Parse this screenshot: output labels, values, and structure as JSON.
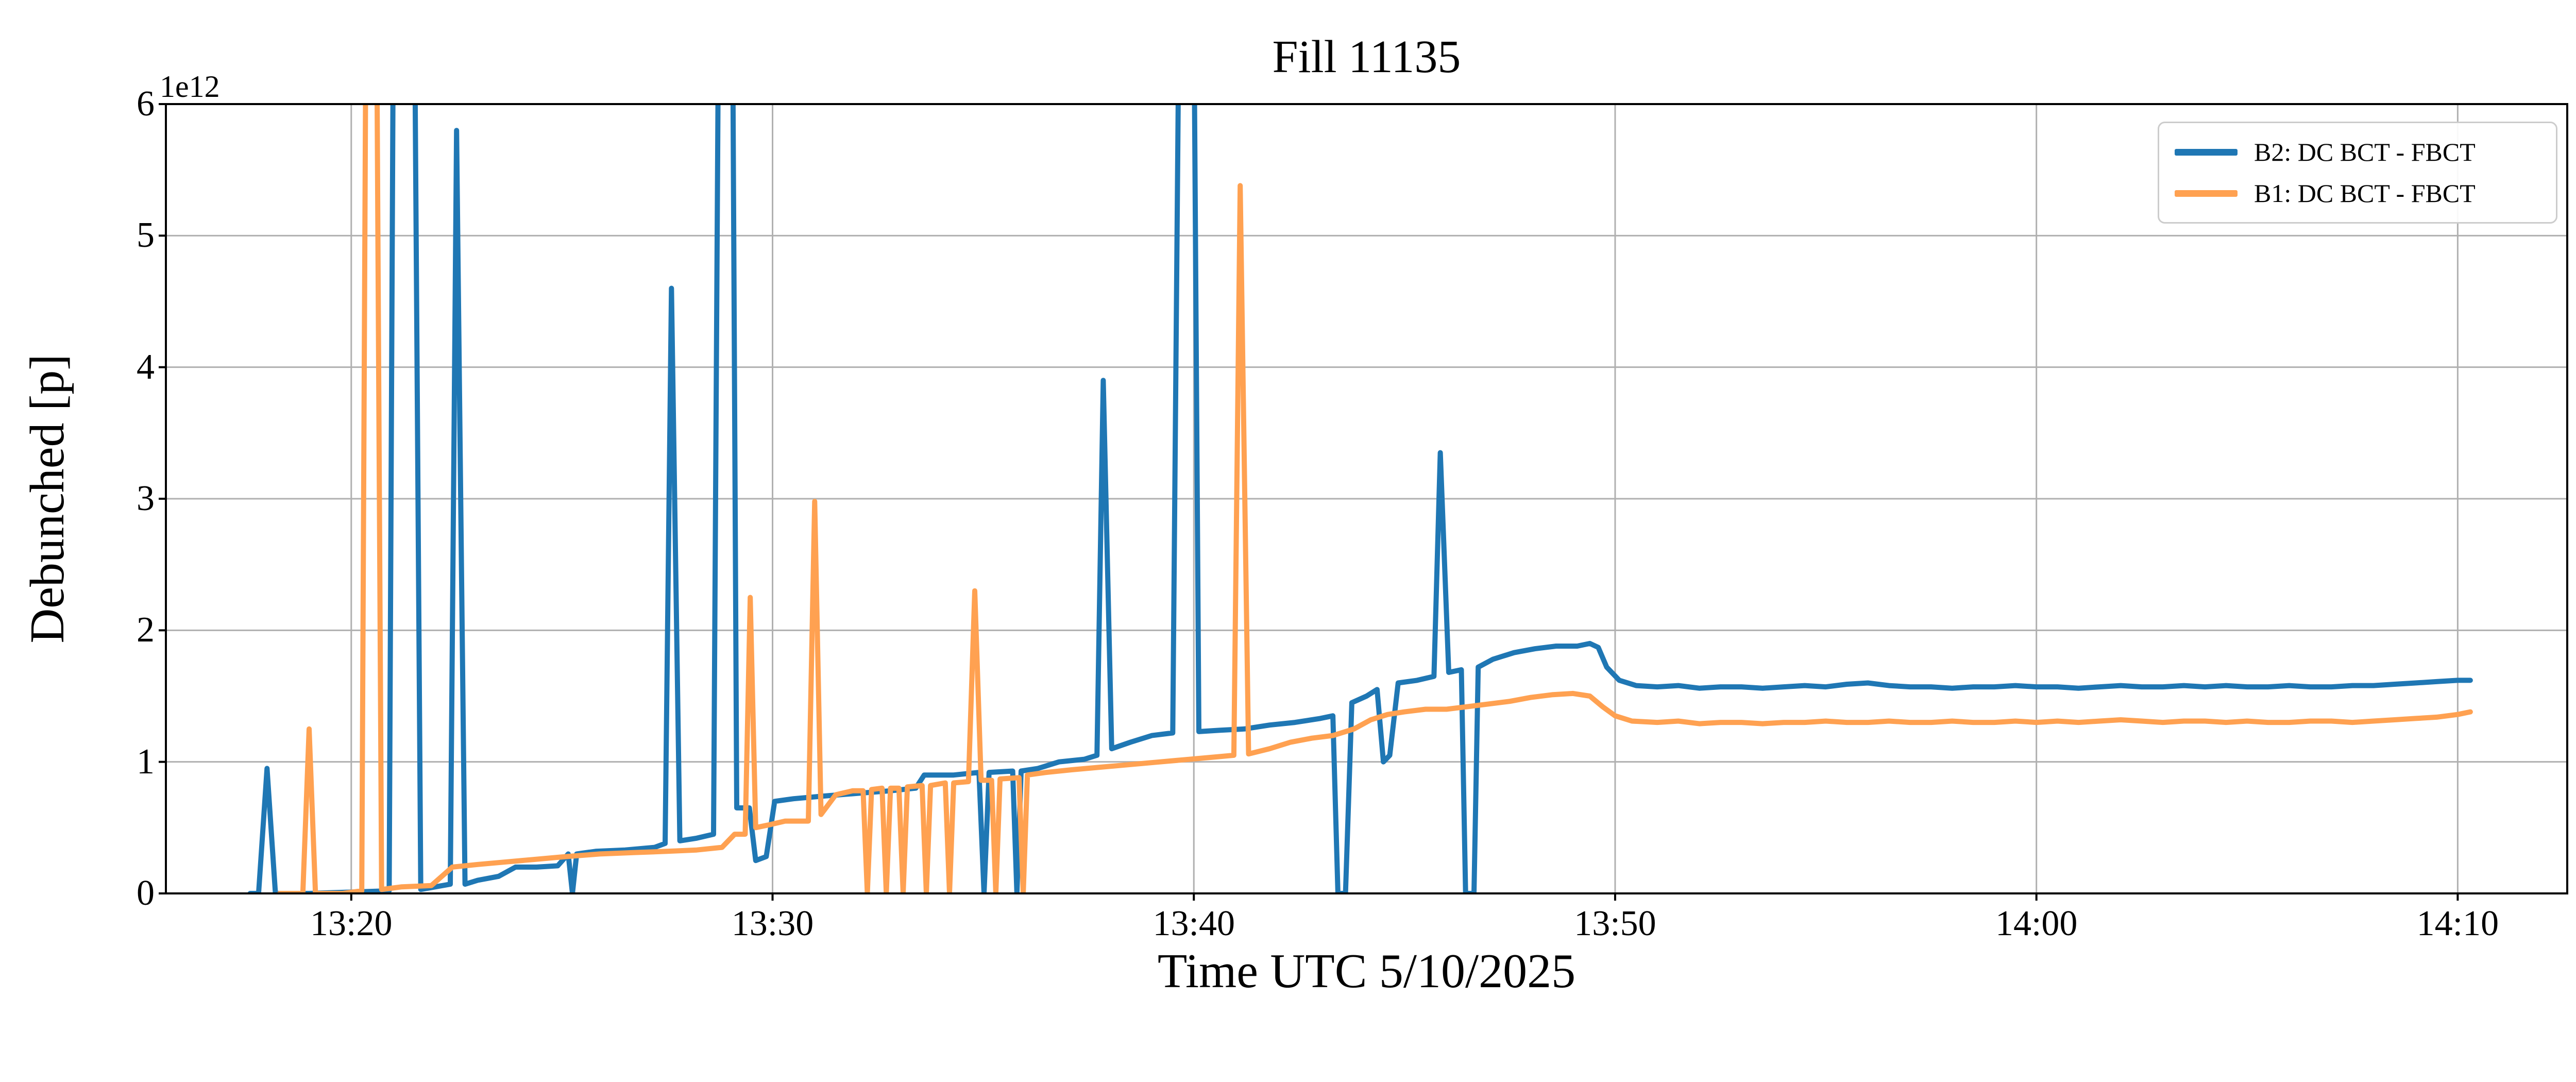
{
  "chart_data": {
    "type": "line",
    "title": "Fill 11135",
    "xlabel": "Time UTC 5/10/2025",
    "ylabel": "Debunched [p]",
    "y_offset_text": "1e12",
    "y_units_multiplier": "1e12",
    "x_encoding": "minutes after 13:00 UTC",
    "xlim": [
      15.6,
      72.6
    ],
    "ylim": [
      0,
      6
    ],
    "xtick_values": [
      20,
      30,
      40,
      50,
      60,
      70
    ],
    "xtick_labels": [
      "13:20",
      "13:30",
      "13:40",
      "13:50",
      "14:00",
      "14:10"
    ],
    "ytick_values": [
      0,
      1,
      2,
      3,
      4,
      5,
      6
    ],
    "ytick_labels": [
      "0",
      "1",
      "2",
      "3",
      "4",
      "5",
      "6"
    ],
    "grid": true,
    "grid_color": "#b0b0b0",
    "legend_position": "upper right",
    "series": [
      {
        "name": "B2: DC BCT - FBCT",
        "color": "#1f77b4",
        "points": [
          [
            17.6,
            0.0
          ],
          [
            17.8,
            0.0
          ],
          [
            18.0,
            0.95
          ],
          [
            18.2,
            0.0
          ],
          [
            19.0,
            0.0
          ],
          [
            20.0,
            0.01
          ],
          [
            20.9,
            0.02
          ],
          [
            21.0,
            6.8
          ],
          [
            21.5,
            6.8
          ],
          [
            21.65,
            0.03
          ],
          [
            22.0,
            0.05
          ],
          [
            22.35,
            0.07
          ],
          [
            22.5,
            5.8
          ],
          [
            22.7,
            0.07
          ],
          [
            23.0,
            0.1
          ],
          [
            23.5,
            0.13
          ],
          [
            23.9,
            0.2
          ],
          [
            24.4,
            0.2
          ],
          [
            24.9,
            0.21
          ],
          [
            25.15,
            0.3
          ],
          [
            25.25,
            0.0
          ],
          [
            25.35,
            0.3
          ],
          [
            25.8,
            0.32
          ],
          [
            26.5,
            0.33
          ],
          [
            27.2,
            0.35
          ],
          [
            27.45,
            0.38
          ],
          [
            27.6,
            4.6
          ],
          [
            27.8,
            0.4
          ],
          [
            28.2,
            0.42
          ],
          [
            28.6,
            0.45
          ],
          [
            28.72,
            6.8
          ],
          [
            29.05,
            6.8
          ],
          [
            29.15,
            0.65
          ],
          [
            29.45,
            0.65
          ],
          [
            29.6,
            0.25
          ],
          [
            29.85,
            0.28
          ],
          [
            30.05,
            0.7
          ],
          [
            30.5,
            0.72
          ],
          [
            31.2,
            0.74
          ],
          [
            32.0,
            0.76
          ],
          [
            32.8,
            0.78
          ],
          [
            33.4,
            0.8
          ],
          [
            33.6,
            0.9
          ],
          [
            34.3,
            0.9
          ],
          [
            34.9,
            0.92
          ],
          [
            35.02,
            0.0
          ],
          [
            35.14,
            0.92
          ],
          [
            35.7,
            0.93
          ],
          [
            35.8,
            0.0
          ],
          [
            35.9,
            0.93
          ],
          [
            36.3,
            0.95
          ],
          [
            36.8,
            1.0
          ],
          [
            37.4,
            1.02
          ],
          [
            37.7,
            1.05
          ],
          [
            37.85,
            3.9
          ],
          [
            38.05,
            1.1
          ],
          [
            38.5,
            1.15
          ],
          [
            39.0,
            1.2
          ],
          [
            39.5,
            1.22
          ],
          [
            39.65,
            6.8
          ],
          [
            40.0,
            6.8
          ],
          [
            40.12,
            1.23
          ],
          [
            40.6,
            1.24
          ],
          [
            41.2,
            1.25
          ],
          [
            41.8,
            1.28
          ],
          [
            42.4,
            1.3
          ],
          [
            43.0,
            1.33
          ],
          [
            43.3,
            1.35
          ],
          [
            43.42,
            0.0
          ],
          [
            43.6,
            0.0
          ],
          [
            43.75,
            1.45
          ],
          [
            44.1,
            1.5
          ],
          [
            44.35,
            1.55
          ],
          [
            44.5,
            1.0
          ],
          [
            44.65,
            1.05
          ],
          [
            44.85,
            1.6
          ],
          [
            45.3,
            1.62
          ],
          [
            45.7,
            1.65
          ],
          [
            45.85,
            3.35
          ],
          [
            46.05,
            1.68
          ],
          [
            46.35,
            1.7
          ],
          [
            46.45,
            0.0
          ],
          [
            46.65,
            0.0
          ],
          [
            46.75,
            1.72
          ],
          [
            47.1,
            1.78
          ],
          [
            47.6,
            1.83
          ],
          [
            48.1,
            1.86
          ],
          [
            48.6,
            1.88
          ],
          [
            49.1,
            1.88
          ],
          [
            49.4,
            1.9
          ],
          [
            49.6,
            1.87
          ],
          [
            49.8,
            1.72
          ],
          [
            50.1,
            1.62
          ],
          [
            50.5,
            1.58
          ],
          [
            51.0,
            1.57
          ],
          [
            51.5,
            1.58
          ],
          [
            52.0,
            1.56
          ],
          [
            52.5,
            1.57
          ],
          [
            53.0,
            1.57
          ],
          [
            53.5,
            1.56
          ],
          [
            54.0,
            1.57
          ],
          [
            54.5,
            1.58
          ],
          [
            55.0,
            1.57
          ],
          [
            55.5,
            1.59
          ],
          [
            56.0,
            1.6
          ],
          [
            56.5,
            1.58
          ],
          [
            57.0,
            1.57
          ],
          [
            57.5,
            1.57
          ],
          [
            58.0,
            1.56
          ],
          [
            58.5,
            1.57
          ],
          [
            59.0,
            1.57
          ],
          [
            59.5,
            1.58
          ],
          [
            60.0,
            1.57
          ],
          [
            60.5,
            1.57
          ],
          [
            61.0,
            1.56
          ],
          [
            61.5,
            1.57
          ],
          [
            62.0,
            1.58
          ],
          [
            62.5,
            1.57
          ],
          [
            63.0,
            1.57
          ],
          [
            63.5,
            1.58
          ],
          [
            64.0,
            1.57
          ],
          [
            64.5,
            1.58
          ],
          [
            65.0,
            1.57
          ],
          [
            65.5,
            1.57
          ],
          [
            66.0,
            1.58
          ],
          [
            66.5,
            1.57
          ],
          [
            67.0,
            1.57
          ],
          [
            67.5,
            1.58
          ],
          [
            68.0,
            1.58
          ],
          [
            68.5,
            1.59
          ],
          [
            69.0,
            1.6
          ],
          [
            69.5,
            1.61
          ],
          [
            70.0,
            1.62
          ],
          [
            70.3,
            1.62
          ]
        ]
      },
      {
        "name": "B1: DC BCT - FBCT",
        "color": "#ffa151",
        "points": [
          [
            18.3,
            0.0
          ],
          [
            18.85,
            0.0
          ],
          [
            19.0,
            1.25
          ],
          [
            19.15,
            0.0
          ],
          [
            19.8,
            0.0
          ],
          [
            20.25,
            0.02
          ],
          [
            20.35,
            6.8
          ],
          [
            20.6,
            6.8
          ],
          [
            20.72,
            0.03
          ],
          [
            21.2,
            0.05
          ],
          [
            21.9,
            0.06
          ],
          [
            22.4,
            0.2
          ],
          [
            23.0,
            0.22
          ],
          [
            23.7,
            0.24
          ],
          [
            24.4,
            0.26
          ],
          [
            25.1,
            0.28
          ],
          [
            25.9,
            0.3
          ],
          [
            26.7,
            0.31
          ],
          [
            27.5,
            0.32
          ],
          [
            28.2,
            0.33
          ],
          [
            28.8,
            0.35
          ],
          [
            29.1,
            0.45
          ],
          [
            29.35,
            0.45
          ],
          [
            29.47,
            2.25
          ],
          [
            29.6,
            0.5
          ],
          [
            29.9,
            0.52
          ],
          [
            30.3,
            0.55
          ],
          [
            30.85,
            0.55
          ],
          [
            31.0,
            2.98
          ],
          [
            31.15,
            0.6
          ],
          [
            31.5,
            0.75
          ],
          [
            31.9,
            0.78
          ],
          [
            32.15,
            0.78
          ],
          [
            32.25,
            0.0
          ],
          [
            32.35,
            0.79
          ],
          [
            32.6,
            0.8
          ],
          [
            32.7,
            0.0
          ],
          [
            32.8,
            0.8
          ],
          [
            33.0,
            0.8
          ],
          [
            33.1,
            0.0
          ],
          [
            33.2,
            0.81
          ],
          [
            33.55,
            0.82
          ],
          [
            33.65,
            0.0
          ],
          [
            33.75,
            0.82
          ],
          [
            34.1,
            0.84
          ],
          [
            34.2,
            0.0
          ],
          [
            34.3,
            0.84
          ],
          [
            34.65,
            0.85
          ],
          [
            34.8,
            2.3
          ],
          [
            34.95,
            0.86
          ],
          [
            35.2,
            0.86
          ],
          [
            35.3,
            0.0
          ],
          [
            35.4,
            0.87
          ],
          [
            35.85,
            0.88
          ],
          [
            35.95,
            0.0
          ],
          [
            36.05,
            0.9
          ],
          [
            36.5,
            0.92
          ],
          [
            37.1,
            0.94
          ],
          [
            37.8,
            0.96
          ],
          [
            38.5,
            0.98
          ],
          [
            39.2,
            1.0
          ],
          [
            39.9,
            1.02
          ],
          [
            40.6,
            1.04
          ],
          [
            40.95,
            1.05
          ],
          [
            41.1,
            5.38
          ],
          [
            41.3,
            1.06
          ],
          [
            41.8,
            1.1
          ],
          [
            42.3,
            1.15
          ],
          [
            42.8,
            1.18
          ],
          [
            43.3,
            1.2
          ],
          [
            43.8,
            1.25
          ],
          [
            44.2,
            1.32
          ],
          [
            44.6,
            1.36
          ],
          [
            45.0,
            1.38
          ],
          [
            45.5,
            1.4
          ],
          [
            46.0,
            1.4
          ],
          [
            46.5,
            1.42
          ],
          [
            47.0,
            1.44
          ],
          [
            47.5,
            1.46
          ],
          [
            48.0,
            1.49
          ],
          [
            48.5,
            1.51
          ],
          [
            49.0,
            1.52
          ],
          [
            49.4,
            1.5
          ],
          [
            49.7,
            1.42
          ],
          [
            50.0,
            1.35
          ],
          [
            50.4,
            1.31
          ],
          [
            51.0,
            1.3
          ],
          [
            51.5,
            1.31
          ],
          [
            52.0,
            1.29
          ],
          [
            52.5,
            1.3
          ],
          [
            53.0,
            1.3
          ],
          [
            53.5,
            1.29
          ],
          [
            54.0,
            1.3
          ],
          [
            54.5,
            1.3
          ],
          [
            55.0,
            1.31
          ],
          [
            55.5,
            1.3
          ],
          [
            56.0,
            1.3
          ],
          [
            56.5,
            1.31
          ],
          [
            57.0,
            1.3
          ],
          [
            57.5,
            1.3
          ],
          [
            58.0,
            1.31
          ],
          [
            58.5,
            1.3
          ],
          [
            59.0,
            1.3
          ],
          [
            59.5,
            1.31
          ],
          [
            60.0,
            1.3
          ],
          [
            60.5,
            1.31
          ],
          [
            61.0,
            1.3
          ],
          [
            61.5,
            1.31
          ],
          [
            62.0,
            1.32
          ],
          [
            62.5,
            1.31
          ],
          [
            63.0,
            1.3
          ],
          [
            63.5,
            1.31
          ],
          [
            64.0,
            1.31
          ],
          [
            64.5,
            1.3
          ],
          [
            65.0,
            1.31
          ],
          [
            65.5,
            1.3
          ],
          [
            66.0,
            1.3
          ],
          [
            66.5,
            1.31
          ],
          [
            67.0,
            1.31
          ],
          [
            67.5,
            1.3
          ],
          [
            68.0,
            1.31
          ],
          [
            68.5,
            1.32
          ],
          [
            69.0,
            1.33
          ],
          [
            69.5,
            1.34
          ],
          [
            70.0,
            1.36
          ],
          [
            70.3,
            1.38
          ]
        ]
      }
    ]
  }
}
